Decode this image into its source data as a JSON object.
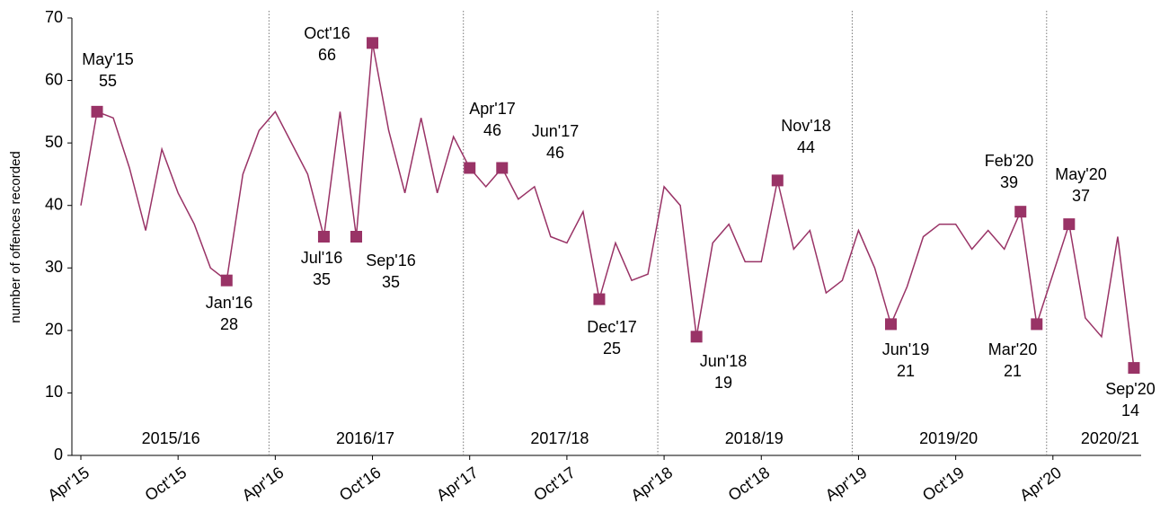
{
  "chart_data": {
    "type": "line",
    "ylabel": "number of offences recorded",
    "categories": [
      "Apr'15",
      null,
      null,
      null,
      null,
      null,
      "Oct'15",
      null,
      null,
      null,
      null,
      null,
      "Apr'16",
      null,
      null,
      null,
      null,
      null,
      "Oct'16",
      null,
      null,
      null,
      null,
      null,
      "Apr'17",
      null,
      null,
      null,
      null,
      null,
      "Oct'17",
      null,
      null,
      null,
      null,
      null,
      "Apr'18",
      null,
      null,
      null,
      null,
      null,
      "Oct'18",
      null,
      null,
      null,
      null,
      null,
      "Apr'19",
      null,
      null,
      null,
      null,
      null,
      "Oct'19",
      null,
      null,
      null,
      null,
      null,
      "Apr'20",
      null,
      null,
      null,
      null,
      null
    ],
    "series": [
      {
        "name": "offences",
        "color": "#993366",
        "values": [
          40,
          55,
          54,
          46,
          36,
          49,
          42,
          37,
          30,
          28,
          45,
          52,
          55,
          50,
          45,
          35,
          55,
          35,
          66,
          52,
          42,
          54,
          42,
          51,
          46,
          43,
          46,
          41,
          43,
          35,
          34,
          39,
          25,
          34,
          28,
          29,
          43,
          40,
          19,
          34,
          37,
          31,
          31,
          44,
          33,
          36,
          26,
          28,
          36,
          30,
          21,
          27,
          35,
          37,
          37,
          33,
          36,
          33,
          39,
          21,
          29,
          37,
          22,
          19,
          35,
          14
        ]
      }
    ],
    "ylim": [
      0,
      70
    ],
    "yticks": [
      0,
      10,
      20,
      30,
      40,
      50,
      60,
      70
    ],
    "periods": [
      "2015/16",
      "2016/17",
      "2017/18",
      "2018/19",
      "2019/20",
      "2020/21"
    ],
    "annotations": [
      {
        "at": 1,
        "label": "May'15"
      },
      {
        "at": 9,
        "label": "Jan'16"
      },
      {
        "at": 15,
        "label": "Jul'16"
      },
      {
        "at": 17,
        "label": "Sep'16"
      },
      {
        "at": 18,
        "label": "Oct'16"
      },
      {
        "at": 24,
        "label": "Apr'17"
      },
      {
        "at": 26,
        "label": "Jun'17"
      },
      {
        "at": 32,
        "label": "Dec'17"
      },
      {
        "at": 38,
        "label": "Jun'18"
      },
      {
        "at": 43,
        "label": "Nov'18"
      },
      {
        "at": 50,
        "label": "Jun'19"
      },
      {
        "at": 58,
        "label": "Feb'20"
      },
      {
        "at": 59,
        "label": "Mar'20"
      },
      {
        "at": 61,
        "label": "May'20"
      },
      {
        "at": 65,
        "label": "Sep'20"
      }
    ]
  }
}
